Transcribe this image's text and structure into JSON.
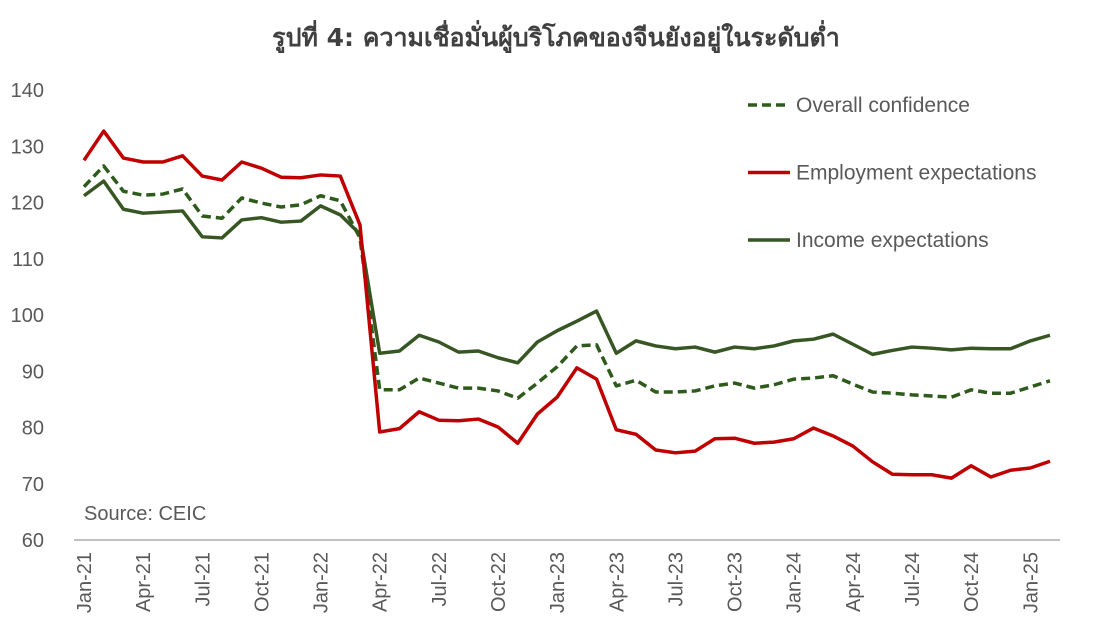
{
  "chart_data": {
    "type": "line",
    "title": "รูปที่ 4: ความเชื่อมั่นผู้บริโภคของจีนยังอยู่ในระดับต่ำ",
    "annotation": "Source: CEIC",
    "categories": [
      "Jan-21",
      null,
      null,
      "Apr-21",
      null,
      null,
      "Jul-21",
      null,
      null,
      "Oct-21",
      null,
      null,
      "Jan-22",
      null,
      null,
      "Apr-22",
      null,
      null,
      "Jul-22",
      null,
      null,
      "Oct-22",
      null,
      null,
      "Jan-23",
      null,
      null,
      "Apr-23",
      null,
      null,
      "Jul-23",
      null,
      null,
      "Oct-23",
      null,
      null,
      "Jan-24",
      null,
      null,
      "Apr-24",
      null,
      null,
      "Jul-24",
      null,
      null,
      "Oct-24",
      null,
      null,
      "Jan-25",
      null
    ],
    "series": [
      {
        "name": "Overall confidence",
        "color": "#2e5a1c",
        "style": "dashed",
        "values": [
          122.8,
          126.5,
          122,
          121.3,
          121.5,
          122.4,
          117.6,
          117.2,
          120.8,
          119.9,
          119.2,
          119.6,
          121.2,
          120.3,
          113.7,
          86.7,
          86.7,
          88.8,
          87.9,
          87,
          87,
          86.5,
          85.2,
          87.9,
          90.8,
          94.5,
          94.7,
          87.4,
          88.4,
          86.3,
          86.3,
          86.5,
          87.4,
          87.9,
          87,
          87.6,
          88.6,
          88.8,
          89.2,
          87.7,
          86.3,
          86.1,
          85.8,
          85.6,
          85.4,
          86.7,
          86.1,
          86.1,
          87.2,
          88.3
        ]
      },
      {
        "name": "Employment expectations",
        "color": "#c00000",
        "style": "solid",
        "values": [
          127.5,
          132.7,
          127.9,
          127.2,
          127.2,
          128.3,
          124.7,
          124,
          127.2,
          126.1,
          124.5,
          124.4,
          124.9,
          124.7,
          116,
          79.2,
          79.8,
          82.8,
          81.3,
          81.2,
          81.5,
          80.1,
          77.2,
          82.4,
          85.4,
          90.6,
          88.6,
          79.6,
          78.8,
          76,
          75.5,
          75.8,
          78,
          78.1,
          77.2,
          77.4,
          78,
          79.9,
          78.5,
          76.7,
          73.9,
          71.7,
          71.6,
          71.6,
          71,
          73.2,
          71.2,
          72.4,
          72.8,
          74
        ]
      },
      {
        "name": "Income expectations",
        "color": "#375623",
        "style": "solid",
        "values": [
          121.2,
          123.8,
          118.8,
          118.1,
          118.3,
          118.5,
          113.9,
          113.7,
          116.9,
          117.3,
          116.5,
          116.7,
          119.4,
          117.8,
          114.4,
          93.2,
          93.6,
          96.4,
          95.2,
          93.4,
          93.6,
          92.4,
          91.5,
          95.2,
          97.2,
          98.9,
          100.7,
          93.2,
          95.4,
          94.5,
          94,
          94.3,
          93.4,
          94.3,
          94,
          94.5,
          95.4,
          95.7,
          96.6,
          94.8,
          93,
          93.7,
          94.3,
          94.1,
          93.8,
          94.1,
          94,
          94,
          95.4,
          96.4
        ]
      }
    ],
    "ylim": [
      60,
      140
    ],
    "yticks": [
      60,
      70,
      80,
      90,
      100,
      110,
      120,
      130,
      140
    ],
    "grid": false,
    "legend": "top-right"
  }
}
